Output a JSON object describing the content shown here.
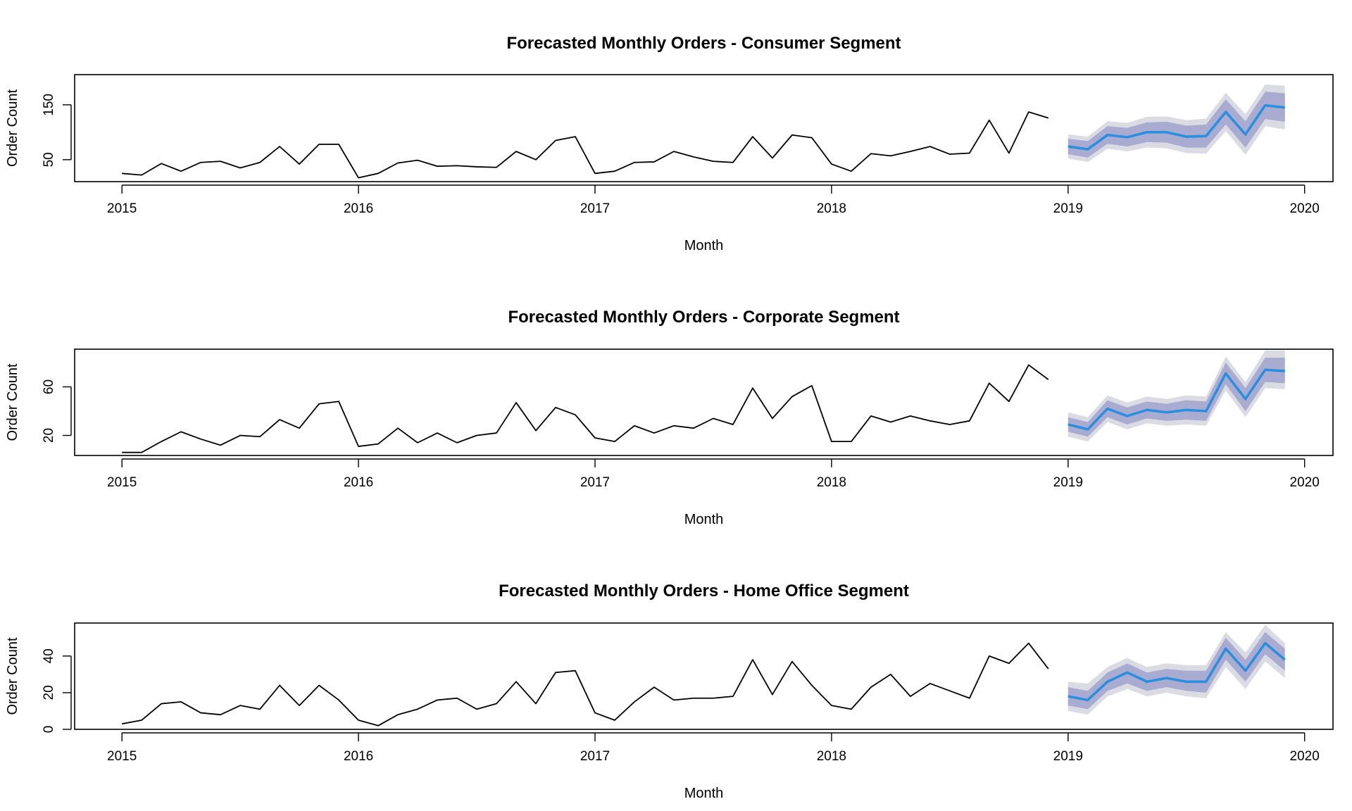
{
  "colors": {
    "history": "#000000",
    "forecast": "#2b8fe0",
    "pi80": "#a9acd0",
    "pi95": "#dbdbe4"
  },
  "x_axis": {
    "label": "Month",
    "ticks": [
      2015,
      2016,
      2017,
      2018,
      2019,
      2020
    ],
    "range": [
      2014.8,
      2020.12
    ]
  },
  "chart_data": [
    {
      "type": "line",
      "title": "Forecasted Monthly Orders - Consumer Segment",
      "xlabel": "Month",
      "ylabel": "Order Count",
      "ylim": [
        10,
        205
      ],
      "yticks": [
        50,
        150
      ],
      "series": [
        {
          "start": "2015-01",
          "values": [
            25,
            22,
            43,
            29,
            45,
            47,
            35,
            45,
            74,
            42,
            78,
            78,
            17,
            25,
            44,
            49,
            38,
            39,
            37,
            36,
            65,
            50,
            85,
            92,
            25,
            29,
            45,
            46,
            65,
            55,
            47,
            45,
            92,
            53,
            95,
            90,
            42,
            29,
            61,
            57,
            65,
            74,
            60,
            62,
            122,
            62,
            137,
            126
          ]
        },
        {
          "start": "2019-01",
          "values": [
            74,
            69,
            95,
            91,
            100,
            100,
            92,
            93,
            137,
            96,
            149,
            145
          ],
          "lo80": [
            60,
            54,
            79,
            74,
            82,
            81,
            72,
            72,
            114,
            72,
            124,
            119
          ],
          "hi80": [
            88,
            84,
            111,
            108,
            118,
            119,
            112,
            114,
            160,
            120,
            174,
            171
          ],
          "lo95": [
            52,
            46,
            70,
            65,
            72,
            71,
            62,
            61,
            102,
            59,
            111,
            105
          ],
          "hi95": [
            96,
            92,
            120,
            117,
            128,
            129,
            122,
            125,
            172,
            133,
            187,
            185
          ]
        }
      ]
    },
    {
      "type": "line",
      "title": "Forecasted Monthly Orders - Corporate Segment",
      "xlabel": "Month",
      "ylabel": "Order Count",
      "ylim": [
        3.5,
        91
      ],
      "yticks": [
        20,
        60
      ],
      "series": [
        {
          "start": "2015-01",
          "values": [
            6,
            6,
            15,
            23,
            17,
            12,
            20,
            19,
            33,
            26,
            46,
            48,
            11,
            13,
            26,
            14,
            22,
            14,
            20,
            22,
            47,
            24,
            43,
            37,
            18,
            15,
            28,
            22,
            28,
            26,
            34,
            29,
            59,
            34,
            52,
            61,
            15,
            15,
            36,
            31,
            36,
            32,
            29,
            32,
            63,
            48,
            78,
            66
          ]
        },
        {
          "start": "2019-01",
          "values": [
            29,
            25,
            42,
            36,
            41,
            39,
            41,
            40,
            71,
            50,
            74,
            73
          ],
          "lo80": [
            23,
            19,
            35,
            29,
            34,
            32,
            33,
            32,
            62,
            40,
            64,
            63
          ],
          "hi80": [
            35,
            31,
            49,
            43,
            48,
            46,
            49,
            48,
            80,
            59,
            84,
            84
          ],
          "lo95": [
            19,
            15,
            31,
            25,
            30,
            28,
            29,
            28,
            57,
            35,
            59,
            58
          ],
          "hi95": [
            39,
            35,
            53,
            47,
            52,
            50,
            53,
            52,
            85,
            64,
            90,
            90
          ]
        }
      ]
    },
    {
      "type": "line",
      "title": "Forecasted Monthly Orders - Home Office Segment",
      "xlabel": "Month",
      "ylabel": "Order Count",
      "ylim": [
        0,
        58
      ],
      "yticks": [
        0,
        20,
        40
      ],
      "series": [
        {
          "start": "2015-01",
          "values": [
            3,
            5,
            14,
            15,
            9,
            8,
            13,
            11,
            24,
            13,
            24,
            16,
            5,
            2,
            8,
            11,
            16,
            17,
            11,
            14,
            26,
            14,
            31,
            32,
            9,
            5,
            15,
            23,
            16,
            17,
            17,
            18,
            38,
            19,
            37,
            24,
            13,
            11,
            23,
            30,
            18,
            25,
            21,
            17,
            40,
            36,
            47,
            33
          ]
        },
        {
          "start": "2019-01",
          "values": [
            18,
            16,
            26,
            31,
            26,
            28,
            26,
            26,
            44,
            32,
            47,
            38
          ],
          "lo80": [
            13,
            11,
            21,
            25,
            21,
            23,
            21,
            20,
            38,
            26,
            41,
            32
          ],
          "hi80": [
            23,
            21,
            31,
            36,
            31,
            33,
            32,
            32,
            50,
            38,
            53,
            44
          ],
          "lo95": [
            10,
            8,
            18,
            22,
            18,
            20,
            18,
            17,
            34,
            22,
            37,
            28
          ],
          "hi95": [
            26,
            25,
            34,
            39,
            34,
            36,
            35,
            35,
            53,
            42,
            57,
            47
          ]
        }
      ]
    }
  ]
}
